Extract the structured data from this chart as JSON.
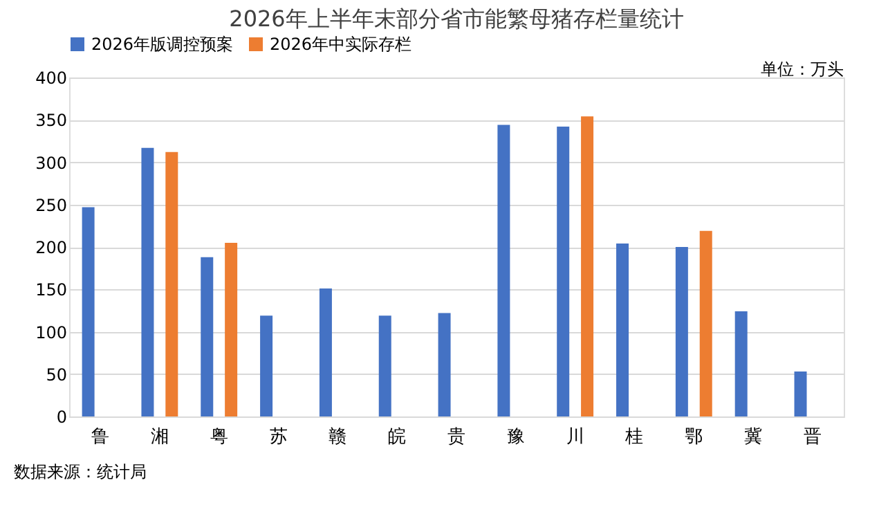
{
  "chart_data": {
    "type": "bar",
    "title": "2026年上半年末部分省市能繁母猪存栏量统计",
    "categories": [
      "鲁",
      "湘",
      "粤",
      "苏",
      "赣",
      "皖",
      "贵",
      "豫",
      "川",
      "桂",
      "鄂",
      "冀",
      "晋"
    ],
    "series": [
      {
        "name": "2026年版调控预案",
        "color": "#4472c4",
        "values": [
          247,
          317,
          188,
          119,
          151,
          119,
          122,
          344,
          342,
          204,
          200,
          124,
          53
        ]
      },
      {
        "name": "2026年中实际存栏",
        "color": "#ed7d31",
        "values": [
          null,
          312,
          205,
          null,
          null,
          null,
          null,
          null,
          354,
          null,
          219,
          null,
          null
        ]
      }
    ],
    "ylim": [
      0,
      400
    ],
    "yticks": [
      0,
      50,
      100,
      150,
      200,
      250,
      300,
      350,
      400
    ],
    "grid": "y",
    "legend": "top",
    "annotations": [
      "单位：万头",
      "数据来源：统计局"
    ]
  }
}
